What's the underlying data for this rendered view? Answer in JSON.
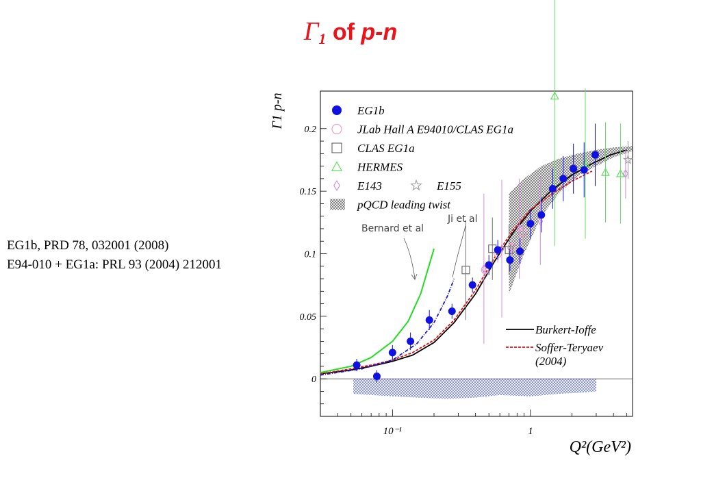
{
  "slide": {
    "title_symbol": "Γ",
    "title_sub": "1",
    "title_of": " of ",
    "title_pn": "p-n"
  },
  "references": [
    "EG1b, PRD 78, 032001 (2008)",
    "E94-010 + EG1a: PRL 93 (2004) 212001"
  ],
  "chart_data": {
    "type": "scatter",
    "title": "",
    "xlabel": "Q²(GeV²)",
    "ylabel": "Γ1 p-n",
    "x_scale": "log",
    "xlim": [
      0.03,
      5.5
    ],
    "ylim": [
      -0.03,
      0.23
    ],
    "x_ticks": [
      {
        "value": 0.1,
        "label": "10⁻¹"
      },
      {
        "value": 1,
        "label": "1"
      }
    ],
    "y_ticks": [
      {
        "value": 0,
        "label": "0"
      },
      {
        "value": 0.05,
        "label": "0.05"
      },
      {
        "value": 0.1,
        "label": "0.1"
      },
      {
        "value": 0.15,
        "label": "0.15"
      },
      {
        "value": 0.2,
        "label": "0.2"
      }
    ],
    "legend_position": "top-left",
    "legend": [
      {
        "name": "EG1b",
        "marker": "filled-circle",
        "color": "#1010e0"
      },
      {
        "name": "JLab Hall A E94010/CLAS EG1a",
        "marker": "open-circle",
        "color": "#e8a0c8"
      },
      {
        "name": "CLAS EG1a",
        "marker": "open-square",
        "color": "#707070"
      },
      {
        "name": "HERMES",
        "marker": "open-triangle",
        "color": "#60dd60"
      },
      {
        "name": "E143",
        "marker": "open-diamond",
        "color": "#d090d8"
      },
      {
        "name": "E155",
        "marker": "open-star",
        "color": "#9a9a9a"
      },
      {
        "name": "pQCD leading twist",
        "marker": "hatched-band",
        "color": "#666666"
      }
    ],
    "series": [
      {
        "name": "EG1b",
        "color": "#1010e0",
        "points": [
          {
            "x": 0.055,
            "y": 0.011,
            "e": 0.005
          },
          {
            "x": 0.077,
            "y": 0.002,
            "e": 0.005
          },
          {
            "x": 0.1,
            "y": 0.021,
            "e": 0.006
          },
          {
            "x": 0.135,
            "y": 0.03,
            "e": 0.007
          },
          {
            "x": 0.185,
            "y": 0.047,
            "e": 0.008
          },
          {
            "x": 0.27,
            "y": 0.054,
            "e": 0.006
          },
          {
            "x": 0.38,
            "y": 0.075,
            "e": 0.006
          },
          {
            "x": 0.5,
            "y": 0.091,
            "e": 0.008
          },
          {
            "x": 0.58,
            "y": 0.103,
            "e": 0.008
          },
          {
            "x": 0.71,
            "y": 0.095,
            "e": 0.009
          },
          {
            "x": 0.84,
            "y": 0.102,
            "e": 0.01
          },
          {
            "x": 1.0,
            "y": 0.124,
            "e": 0.012
          },
          {
            "x": 1.2,
            "y": 0.131,
            "e": 0.014
          },
          {
            "x": 1.45,
            "y": 0.152,
            "e": 0.016
          },
          {
            "x": 1.73,
            "y": 0.16,
            "e": 0.018
          },
          {
            "x": 2.05,
            "y": 0.168,
            "e": 0.02
          },
          {
            "x": 2.45,
            "y": 0.167,
            "e": 0.022
          },
          {
            "x": 2.95,
            "y": 0.179,
            "e": 0.025
          }
        ]
      },
      {
        "name": "JLab Hall A E94010/CLAS EG1a",
        "color": "#e8a0c8",
        "points": [
          {
            "x": 0.47,
            "y": 0.087,
            "e": 0.005
          },
          {
            "x": 0.58,
            "y": 0.1,
            "e": 0.007
          },
          {
            "x": 0.73,
            "y": 0.105,
            "e": 0.006
          },
          {
            "x": 0.88,
            "y": 0.117,
            "e": 0.008
          }
        ]
      },
      {
        "name": "CLAS EG1a",
        "color": "#707070",
        "points": [
          {
            "x": 0.34,
            "y": 0.087,
            "e": 0.04
          },
          {
            "x": 0.53,
            "y": 0.104,
            "e": 0.025
          },
          {
            "x": 0.7,
            "y": 0.103,
            "e": 0.02
          }
        ]
      },
      {
        "name": "HERMES",
        "color": "#60dd60",
        "points": [
          {
            "x": 1.5,
            "y": 0.226,
            "e": 0.12
          },
          {
            "x": 2.5,
            "y": 0.172,
            "e": 0.06
          },
          {
            "x": 3.5,
            "y": 0.165,
            "e": 0.04
          },
          {
            "x": 4.5,
            "y": 0.164,
            "e": 0.04
          }
        ]
      },
      {
        "name": "E143",
        "color": "#d090d8",
        "points": [
          {
            "x": 0.46,
            "y": 0.088,
            "e": 0.06
          },
          {
            "x": 0.62,
            "y": 0.104,
            "e": 0.055
          },
          {
            "x": 0.83,
            "y": 0.12,
            "e": 0.04
          },
          {
            "x": 1.18,
            "y": 0.126,
            "e": 0.035
          },
          {
            "x": 4.9,
            "y": 0.164,
            "e": 0.02
          }
        ]
      },
      {
        "name": "E155",
        "color": "#9a9a9a",
        "points": [
          {
            "x": 5.1,
            "y": 0.175,
            "e": 0.015
          }
        ]
      }
    ],
    "curves": [
      {
        "name": "Burkert-Ioffe",
        "color": "#000000",
        "dash": "solid",
        "x": [
          0.03,
          0.05,
          0.07,
          0.1,
          0.14,
          0.2,
          0.28,
          0.4,
          0.55,
          0.75,
          1.0,
          1.4,
          2.0,
          2.8,
          3.8,
          5.0
        ],
        "y": [
          0.004,
          0.007,
          0.01,
          0.014,
          0.019,
          0.029,
          0.045,
          0.068,
          0.094,
          0.117,
          0.134,
          0.15,
          0.163,
          0.172,
          0.179,
          0.183
        ]
      },
      {
        "name": "Soffer-Teryaev (2004)",
        "color": "#e01010",
        "dash": "4,2",
        "x": [
          0.03,
          0.05,
          0.07,
          0.1,
          0.14,
          0.2,
          0.28,
          0.4,
          0.55,
          0.75,
          1.0,
          1.4,
          2.0,
          2.8
        ],
        "y": [
          0.004,
          0.008,
          0.011,
          0.015,
          0.021,
          0.031,
          0.047,
          0.071,
          0.097,
          0.119,
          0.135,
          0.147,
          0.158,
          0.166
        ]
      },
      {
        "name": "Bernard et al",
        "color": "#22dd22",
        "dash": "solid",
        "x": [
          0.03,
          0.05,
          0.07,
          0.1,
          0.13,
          0.16,
          0.2
        ],
        "y": [
          0.005,
          0.01,
          0.017,
          0.03,
          0.046,
          0.068,
          0.104
        ]
      },
      {
        "name": "Ji et al",
        "color": "#1a1ad0",
        "dash": "5,2,1,2",
        "x": [
          0.03,
          0.06,
          0.1,
          0.15,
          0.2,
          0.25,
          0.28
        ],
        "y": [
          0.003,
          0.008,
          0.015,
          0.028,
          0.045,
          0.066,
          0.08
        ]
      }
    ],
    "bands": [
      {
        "name": "pQCD leading twist",
        "color": "#555555",
        "x": [
          0.7,
          0.9,
          1.2,
          1.6,
          2.2,
          3.0,
          4.0,
          5.5
        ],
        "y_low": [
          0.068,
          0.1,
          0.13,
          0.148,
          0.162,
          0.17,
          0.177,
          0.182
        ],
        "y_high": [
          0.148,
          0.16,
          0.17,
          0.176,
          0.18,
          0.183,
          0.185,
          0.186
        ]
      },
      {
        "name": "systematic errors",
        "color": "#4a5ad0",
        "x": [
          0.052,
          0.1,
          0.15,
          0.25,
          0.4,
          0.6,
          1.0,
          1.6,
          2.4,
          3.0
        ],
        "y_low": [
          -0.012,
          -0.014,
          -0.015,
          -0.016,
          -0.015,
          -0.013,
          -0.014,
          -0.012,
          -0.011,
          -0.01
        ]
      }
    ],
    "annotations": [
      "Bernard et al",
      "Ji et al",
      "Burkert-Ioffe",
      "Soffer-Teryaev",
      "(2004)"
    ]
  }
}
